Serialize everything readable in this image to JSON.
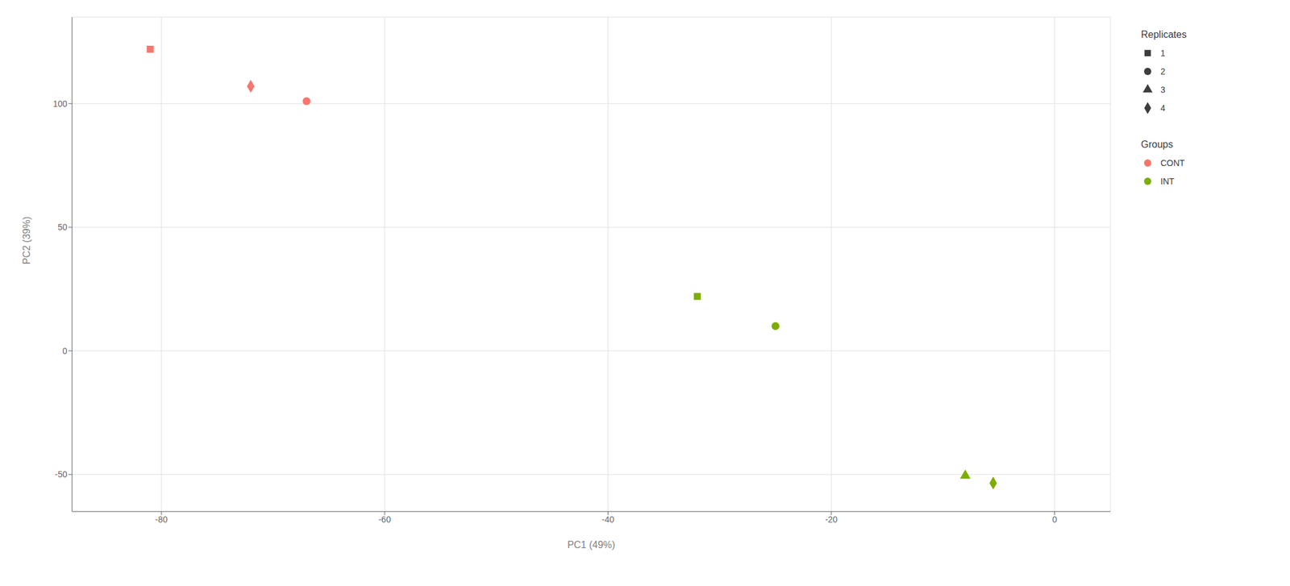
{
  "chart_data": {
    "type": "scatter",
    "xlabel": "PC1 (49%)",
    "ylabel": "PC2 (39%)",
    "xlim": [
      -88,
      5
    ],
    "ylim": [
      -65,
      135
    ],
    "xticks": [
      -80,
      -60,
      -40,
      -20,
      0
    ],
    "yticks": [
      -50,
      0,
      50,
      100
    ],
    "grid": true,
    "legend": "right",
    "legend_groups_title": "Groups",
    "series": [
      {
        "name": "CONT",
        "color": "#F8766D",
        "x": [
          -81.0,
          -72.0,
          -67.0
        ],
        "values": [
          122.0,
          107.0,
          101.0
        ],
        "replicates": [
          "1",
          "4",
          "2"
        ]
      },
      {
        "name": "INT",
        "color": "#7CAE00",
        "x": [
          -32.0,
          -25.0,
          -8.0,
          -5.5
        ],
        "values": [
          22.0,
          10.0,
          -50.5,
          -53.5
        ],
        "replicates": [
          "1",
          "2",
          "3",
          "4"
        ]
      }
    ],
    "legend_replicates_title": "Replicates",
    "legend_replicates": [
      {
        "label": "1",
        "marker": "square"
      },
      {
        "label": "2",
        "marker": "circle"
      },
      {
        "label": "3",
        "marker": "triangle"
      },
      {
        "label": "4",
        "marker": "diamond"
      }
    ]
  }
}
